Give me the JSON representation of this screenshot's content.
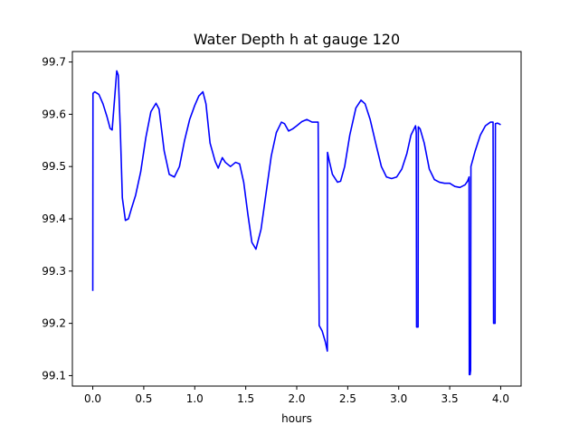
{
  "chart_data": {
    "type": "line",
    "title": "Water Depth h at gauge 120",
    "xlabel": "hours",
    "ylabel": "",
    "xlim": [
      -0.2,
      4.2
    ],
    "ylim": [
      99.08,
      99.72
    ],
    "xticks": [
      0.0,
      0.5,
      1.0,
      1.5,
      2.0,
      2.5,
      3.0,
      3.5,
      4.0
    ],
    "xtick_labels": [
      "0.0",
      "0.5",
      "1.0",
      "1.5",
      "2.0",
      "2.5",
      "3.0",
      "3.5",
      "4.0"
    ],
    "yticks": [
      99.1,
      99.2,
      99.3,
      99.4,
      99.5,
      99.6,
      99.7
    ],
    "ytick_labels": [
      "99.1",
      "99.2",
      "99.3",
      "99.4",
      "99.5",
      "99.6",
      "99.7"
    ],
    "grid": false,
    "series": [
      {
        "color": "#0000ff",
        "points": [
          [
            0.0,
            99.262
          ],
          [
            0.002,
            99.64
          ],
          [
            0.02,
            99.643
          ],
          [
            0.06,
            99.638
          ],
          [
            0.1,
            99.62
          ],
          [
            0.14,
            99.595
          ],
          [
            0.17,
            99.573
          ],
          [
            0.19,
            99.57
          ],
          [
            0.21,
            99.62
          ],
          [
            0.235,
            99.683
          ],
          [
            0.25,
            99.675
          ],
          [
            0.27,
            99.57
          ],
          [
            0.29,
            99.44
          ],
          [
            0.32,
            99.397
          ],
          [
            0.35,
            99.4
          ],
          [
            0.38,
            99.42
          ],
          [
            0.42,
            99.445
          ],
          [
            0.47,
            99.49
          ],
          [
            0.52,
            99.555
          ],
          [
            0.57,
            99.605
          ],
          [
            0.62,
            99.621
          ],
          [
            0.65,
            99.61
          ],
          [
            0.7,
            99.53
          ],
          [
            0.75,
            99.485
          ],
          [
            0.8,
            99.48
          ],
          [
            0.85,
            99.5
          ],
          [
            0.9,
            99.55
          ],
          [
            0.95,
            99.59
          ],
          [
            1.0,
            99.617
          ],
          [
            1.04,
            99.635
          ],
          [
            1.08,
            99.643
          ],
          [
            1.11,
            99.62
          ],
          [
            1.15,
            99.545
          ],
          [
            1.2,
            99.51
          ],
          [
            1.23,
            99.497
          ],
          [
            1.27,
            99.517
          ],
          [
            1.3,
            99.508
          ],
          [
            1.35,
            99.5
          ],
          [
            1.4,
            99.508
          ],
          [
            1.44,
            99.505
          ],
          [
            1.48,
            99.47
          ],
          [
            1.52,
            99.41
          ],
          [
            1.56,
            99.355
          ],
          [
            1.6,
            99.342
          ],
          [
            1.65,
            99.38
          ],
          [
            1.7,
            99.45
          ],
          [
            1.75,
            99.52
          ],
          [
            1.8,
            99.565
          ],
          [
            1.85,
            99.585
          ],
          [
            1.88,
            99.582
          ],
          [
            1.92,
            99.568
          ],
          [
            1.96,
            99.572
          ],
          [
            2.0,
            99.578
          ],
          [
            2.05,
            99.586
          ],
          [
            2.1,
            99.59
          ],
          [
            2.15,
            99.585
          ],
          [
            2.2,
            99.585
          ],
          [
            2.21,
            99.585
          ],
          [
            2.22,
            99.196
          ],
          [
            2.25,
            99.185
          ],
          [
            2.28,
            99.165
          ],
          [
            2.3,
            99.147
          ],
          [
            2.302,
            99.527
          ],
          [
            2.32,
            99.51
          ],
          [
            2.35,
            99.485
          ],
          [
            2.4,
            99.47
          ],
          [
            2.43,
            99.472
          ],
          [
            2.47,
            99.5
          ],
          [
            2.52,
            99.56
          ],
          [
            2.58,
            99.612
          ],
          [
            2.63,
            99.627
          ],
          [
            2.67,
            99.62
          ],
          [
            2.72,
            99.59
          ],
          [
            2.78,
            99.54
          ],
          [
            2.83,
            99.5
          ],
          [
            2.88,
            99.48
          ],
          [
            2.93,
            99.477
          ],
          [
            2.98,
            99.48
          ],
          [
            3.03,
            99.495
          ],
          [
            3.08,
            99.525
          ],
          [
            3.12,
            99.56
          ],
          [
            3.165,
            99.578
          ],
          [
            3.172,
            99.565
          ],
          [
            3.175,
            99.193
          ],
          [
            3.19,
            99.193
          ],
          [
            3.192,
            99.576
          ],
          [
            3.21,
            99.572
          ],
          [
            3.25,
            99.545
          ],
          [
            3.3,
            99.495
          ],
          [
            3.35,
            99.475
          ],
          [
            3.4,
            99.47
          ],
          [
            3.45,
            99.468
          ],
          [
            3.5,
            99.468
          ],
          [
            3.55,
            99.462
          ],
          [
            3.6,
            99.46
          ],
          [
            3.65,
            99.465
          ],
          [
            3.675,
            99.472
          ],
          [
            3.69,
            99.48
          ],
          [
            3.692,
            99.102
          ],
          [
            3.7,
            99.102
          ],
          [
            3.705,
            99.11
          ],
          [
            3.708,
            99.5
          ],
          [
            3.75,
            99.53
          ],
          [
            3.8,
            99.56
          ],
          [
            3.85,
            99.578
          ],
          [
            3.9,
            99.585
          ],
          [
            3.925,
            99.585
          ],
          [
            3.93,
            99.2
          ],
          [
            3.945,
            99.2
          ],
          [
            3.948,
            99.582
          ],
          [
            3.97,
            99.583
          ],
          [
            4.0,
            99.58
          ]
        ]
      }
    ]
  }
}
